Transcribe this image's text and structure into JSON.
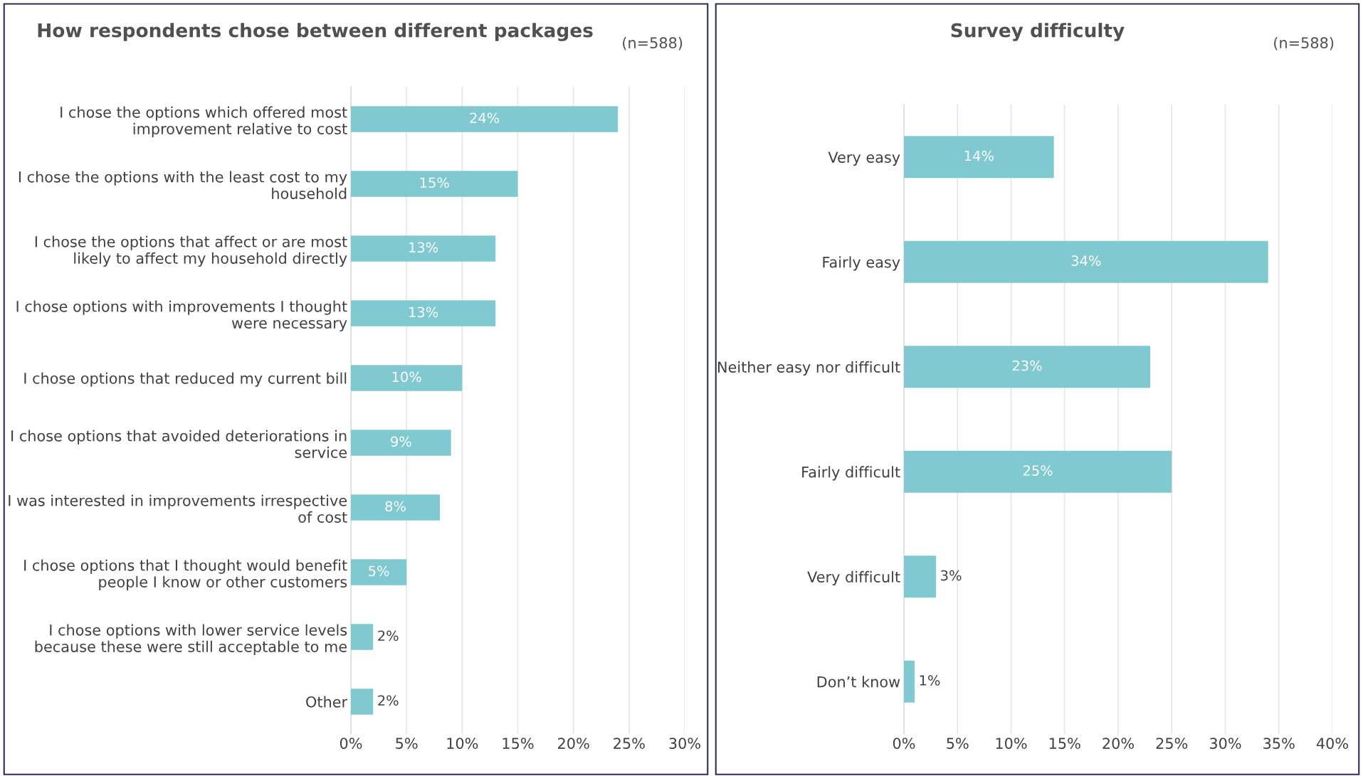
{
  "chart_data": [
    {
      "type": "bar",
      "orientation": "horizontal",
      "title": "How respondents chose between different packages",
      "annotations": [
        "(n=588)"
      ],
      "categories": [
        "I chose the options which offered most improvement relative to cost",
        "I chose the options with the least cost to my household",
        "I chose the options that affect or are most likely to affect my household directly",
        "I chose options with improvements I thought were necessary",
        "I chose options that reduced my current bill",
        "I chose options that avoided deteriorations in service",
        "I was interested in improvements irrespective of cost",
        "I chose options that I thought would benefit people I know or other customers",
        "I chose options with lower service levels because these were still acceptable to me",
        "Other"
      ],
      "values": [
        24,
        15,
        13,
        13,
        10,
        9,
        8,
        5,
        2,
        2
      ],
      "value_labels": [
        "24%",
        "15%",
        "13%",
        "13%",
        "10%",
        "9%",
        "8%",
        "5%",
        "2%",
        "2%"
      ],
      "color": "#80c9d1",
      "grid": "x",
      "legend": false,
      "xlim": [
        0,
        30
      ],
      "xticks": [
        {
          "value": 0,
          "label": "0%"
        },
        {
          "value": 5,
          "label": "5%"
        },
        {
          "value": 10,
          "label": "10%"
        },
        {
          "value": 15,
          "label": "15%"
        },
        {
          "value": 20,
          "label": "20%"
        },
        {
          "value": 25,
          "label": "25%"
        },
        {
          "value": 30,
          "label": "30%"
        }
      ]
    },
    {
      "type": "bar",
      "orientation": "horizontal",
      "title": "Survey difficulty",
      "annotations": [
        "(n=588)"
      ],
      "categories": [
        "Very easy",
        "Fairly easy",
        "Neither easy nor difficult",
        "Fairly difficult",
        "Very difficult",
        "Don’t know"
      ],
      "values": [
        14,
        34,
        23,
        25,
        3,
        1
      ],
      "value_labels": [
        "14%",
        "34%",
        "23%",
        "25%",
        "3%",
        "1%"
      ],
      "color": "#80c9d1",
      "grid": "x",
      "legend": false,
      "xlim": [
        0,
        40
      ],
      "xticks": [
        {
          "value": 0,
          "label": "0%"
        },
        {
          "value": 5,
          "label": "5%"
        },
        {
          "value": 10,
          "label": "10%"
        },
        {
          "value": 15,
          "label": "15%"
        },
        {
          "value": 20,
          "label": "20%"
        },
        {
          "value": 25,
          "label": "25%"
        },
        {
          "value": 30,
          "label": "30%"
        },
        {
          "value": 35,
          "label": "35%"
        },
        {
          "value": 40,
          "label": "40%"
        }
      ]
    }
  ]
}
